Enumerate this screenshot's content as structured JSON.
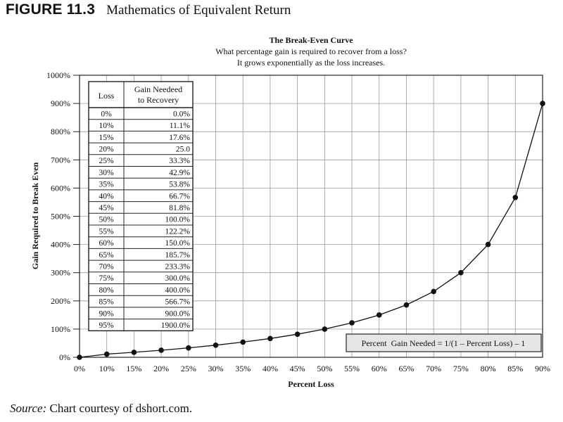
{
  "figure": {
    "label": "FIGURE 11.3",
    "title": "Mathematics of Equivalent Return"
  },
  "source": {
    "label": "Source:",
    "text": "Chart courtesy of dshort.com."
  },
  "chart_data": {
    "type": "line",
    "title": "The Break-Even Curve",
    "subtitle_lines": [
      "What percentage gain is required to recover from a loss?",
      "It grows exponentially as the loss increases."
    ],
    "xlabel": "Percent Loss",
    "ylabel": "Gain Required to Break Even",
    "x_ticks": [
      "0%",
      "10%",
      "15%",
      "20%",
      "25%",
      "30%",
      "35%",
      "40%",
      "45%",
      "50%",
      "55%",
      "60%",
      "65%",
      "70%",
      "75%",
      "80%",
      "85%",
      "90%"
    ],
    "y_ticks": [
      "0%",
      "100%",
      "200%",
      "300%",
      "400%",
      "500%",
      "600%",
      "700%",
      "800%",
      "900%",
      "1000%"
    ],
    "ylim": [
      0,
      1000
    ],
    "grid": true,
    "markers": true,
    "series": [
      {
        "values": [
          0,
          11.1,
          17.6,
          25.0,
          33.3,
          42.9,
          53.8,
          66.7,
          81.8,
          100.0,
          122.2,
          150.0,
          185.7,
          233.3,
          300.0,
          400.0,
          566.7,
          900.0
        ]
      }
    ],
    "annotation": "Percent  Gain Needed = 1/(1 – Percent Loss) – 1",
    "table": {
      "headers": [
        "Loss",
        "Gain Needeed to Recovery"
      ],
      "rows": [
        [
          "0%",
          "0.0%"
        ],
        [
          "10%",
          "11.1%"
        ],
        [
          "15%",
          "17.6%"
        ],
        [
          "20%",
          "25.0"
        ],
        [
          "25%",
          "33.3%"
        ],
        [
          "30%",
          "42.9%"
        ],
        [
          "35%",
          "53.8%"
        ],
        [
          "40%",
          "66.7%"
        ],
        [
          "45%",
          "81.8%"
        ],
        [
          "50%",
          "100.0%"
        ],
        [
          "55%",
          "122.2%"
        ],
        [
          "60%",
          "150.0%"
        ],
        [
          "65%",
          "185.7%"
        ],
        [
          "70%",
          "233.3%"
        ],
        [
          "75%",
          "300.0%"
        ],
        [
          "80%",
          "400.0%"
        ],
        [
          "85%",
          "566.7%"
        ],
        [
          "90%",
          "900.0%"
        ],
        [
          "95%",
          "1900.0%"
        ]
      ]
    }
  }
}
